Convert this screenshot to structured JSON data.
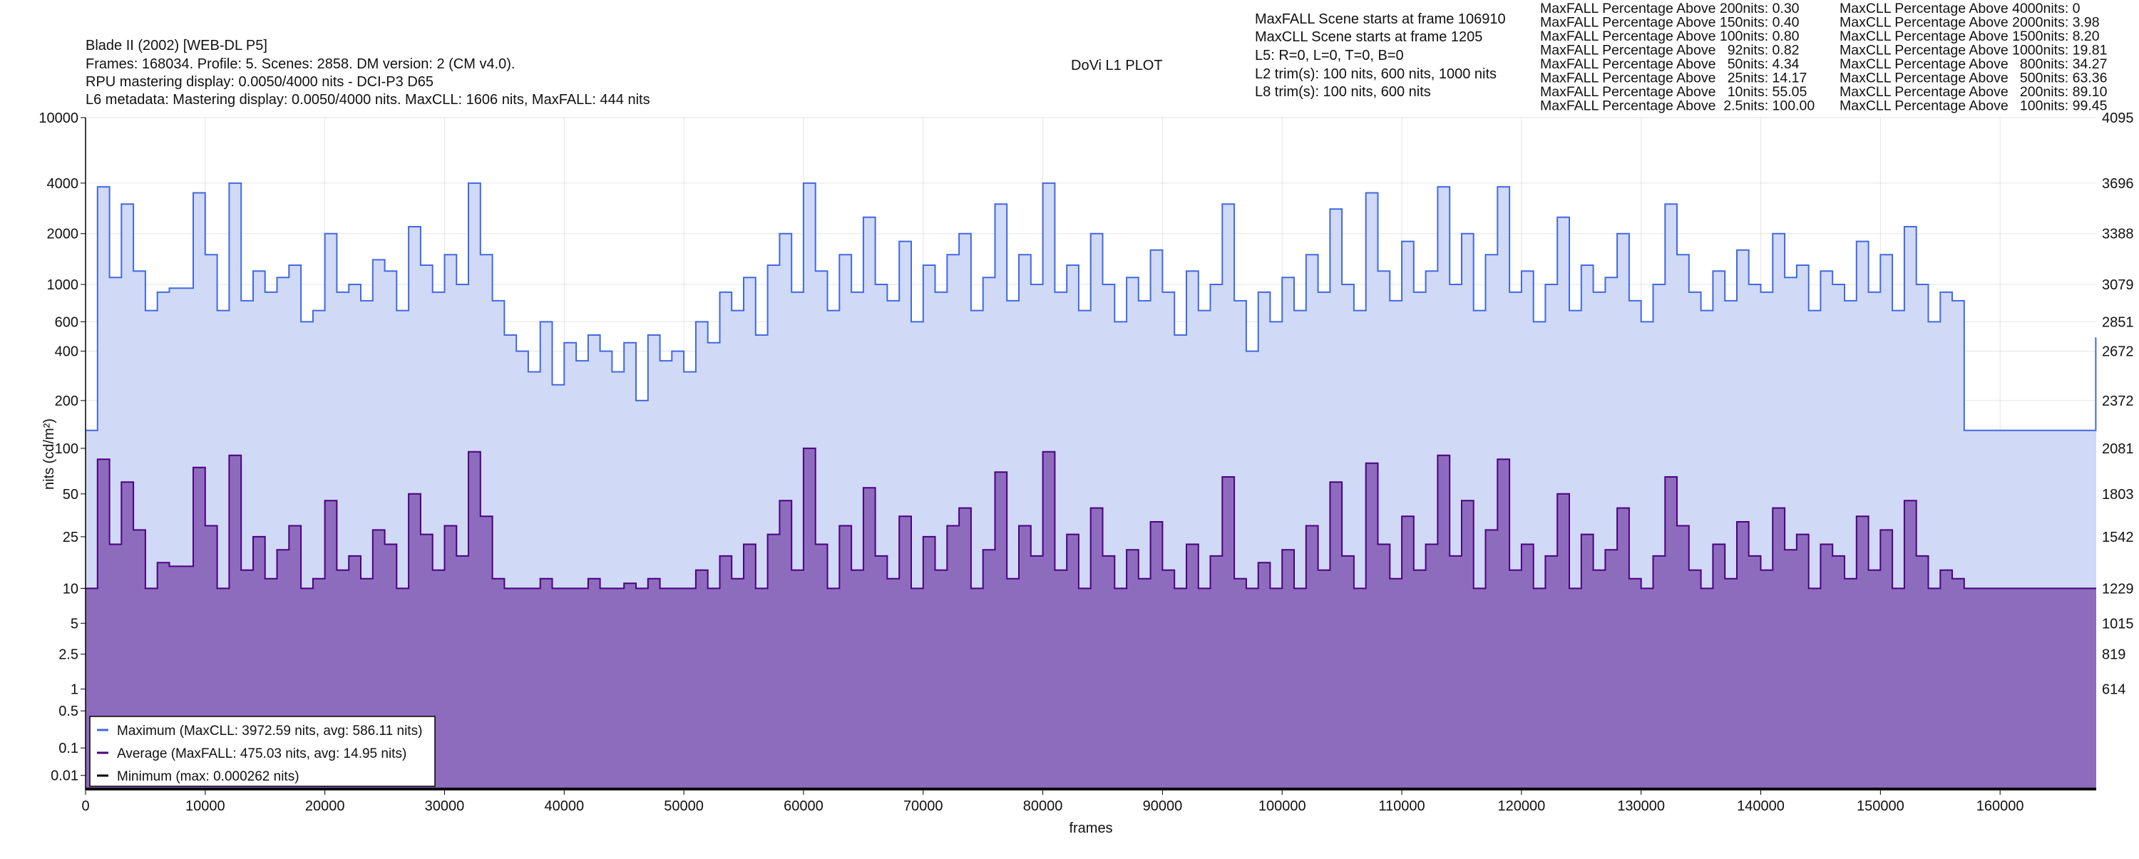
{
  "header": {
    "title": "Blade II (2002) [WEB-DL P5]",
    "line1": "Frames: 168034. Profile: 5. Scenes: 2858. DM version: 2 (CM v4.0).",
    "line2": "RPU mastering display: 0.0050/4000 nits - DCI-P3 D65",
    "line3": "L6 metadata: Mastering display: 0.0050/4000 nits. MaxCLL: 1606 nits, MaxFALL: 444 nits",
    "plot_title": "DoVi L1 PLOT"
  },
  "info": [
    "MaxFALL Scene starts at frame 106910",
    "MaxCLL Scene starts at frame 1205",
    "L5: R=0, L=0, T=0, B=0",
    "L2 trim(s): 100 nits, 600 nits, 1000 nits",
    "L8 trim(s): 100 nits, 600 nits"
  ],
  "maxfall_stats": [
    "MaxFALL Percentage Above 200nits: 0.30",
    "MaxFALL Percentage Above 150nits: 0.40",
    "MaxFALL Percentage Above 100nits: 0.80",
    "MaxFALL Percentage Above   92nits: 0.82",
    "MaxFALL Percentage Above   50nits: 4.34",
    "MaxFALL Percentage Above   25nits: 14.17",
    "MaxFALL Percentage Above   10nits: 55.05",
    "MaxFALL Percentage Above  2.5nits: 100.00"
  ],
  "maxcll_stats": [
    "MaxCLL Percentage Above 4000nits: 0",
    "MaxCLL Percentage Above 2000nits: 3.98",
    "MaxCLL Percentage Above 1500nits: 8.20",
    "MaxCLL Percentage Above 1000nits: 19.81",
    "MaxCLL Percentage Above   800nits: 34.27",
    "MaxCLL Percentage Above   500nits: 63.36",
    "MaxCLL Percentage Above   200nits: 89.10",
    "MaxCLL Percentage Above   100nits: 99.45"
  ],
  "chart_data": {
    "type": "line",
    "title": "DoVi L1 PLOT",
    "xlabel": "frames",
    "ylabel": "nits (cd/m²)",
    "xlim": [
      0,
      168034
    ],
    "x_step": 1000,
    "y_scale": "pq",
    "ylim": [
      0,
      10000
    ],
    "x_ticks": [
      0,
      10000,
      20000,
      30000,
      40000,
      50000,
      60000,
      70000,
      80000,
      90000,
      100000,
      110000,
      120000,
      130000,
      140000,
      150000,
      160000
    ],
    "x_tick_labels": [
      "0",
      "10000",
      "20000",
      "30000",
      "40000",
      "50000",
      "60000",
      "70000",
      "80000",
      "90000",
      "100000",
      "110000",
      "120000",
      "130000",
      "140000",
      "150000",
      "160000"
    ],
    "y_ticks": [
      10000,
      4000,
      2000,
      1000,
      600,
      400,
      200,
      100,
      50,
      25,
      10,
      5,
      2.5,
      1,
      0.5,
      0.1,
      0.01
    ],
    "y_tick_labels": [
      "10000",
      "4000",
      "2000",
      "1000",
      "600",
      "400",
      "200",
      "100",
      "50",
      "25",
      "10",
      "5",
      "2.5",
      "1",
      "0.5",
      "0.1",
      "0.01"
    ],
    "y2_tick_labels": [
      "4095",
      "3696",
      "3388",
      "3079",
      "2851",
      "2672",
      "2372",
      "2081",
      "1803",
      "1542",
      "1229",
      "1015",
      "819",
      "614"
    ],
    "grid": true,
    "legend_position": "bottom-left",
    "series": [
      {
        "name": "Maximum",
        "legend": "Maximum (MaxCLL: 3972.59 nits, avg: 586.11 nits)",
        "color": "#4169e1",
        "fill": "#d0d9f6",
        "values": [
          130,
          3800,
          1100,
          3000,
          1200,
          700,
          900,
          950,
          950,
          3500,
          1500,
          700,
          4000,
          800,
          1200,
          900,
          1100,
          1300,
          600,
          700,
          2000,
          900,
          1000,
          800,
          1400,
          1200,
          700,
          2200,
          1300,
          900,
          1500,
          1000,
          4000,
          1500,
          800,
          500,
          400,
          300,
          600,
          250,
          450,
          350,
          500,
          400,
          300,
          450,
          200,
          500,
          350,
          400,
          300,
          600,
          450,
          900,
          700,
          1100,
          500,
          1300,
          2000,
          900,
          4000,
          1200,
          700,
          1500,
          900,
          2500,
          1000,
          800,
          1800,
          600,
          1300,
          900,
          1500,
          2000,
          700,
          1100,
          3000,
          800,
          1500,
          1000,
          4000,
          900,
          1300,
          700,
          2000,
          1000,
          600,
          1100,
          800,
          1600,
          900,
          500,
          1200,
          700,
          1000,
          3000,
          800,
          400,
          900,
          600,
          1100,
          700,
          1500,
          900,
          2800,
          1000,
          700,
          3500,
          1200,
          800,
          1800,
          900,
          1200,
          3800,
          1000,
          2000,
          700,
          1500,
          3800,
          900,
          1200,
          600,
          1000,
          2500,
          700,
          1300,
          900,
          1100,
          2000,
          800,
          600,
          1000,
          3000,
          1500,
          900,
          700,
          1200,
          800,
          1600,
          1000,
          900,
          2000,
          1100,
          1300,
          700,
          1200,
          1000,
          800,
          1800,
          900,
          1500,
          700,
          2200,
          1000,
          600,
          900,
          800,
          130,
          130,
          130,
          130,
          130,
          130,
          130,
          130,
          130,
          130,
          130,
          480
        ]
      },
      {
        "name": "Average",
        "legend": "Average (MaxFALL: 475.03 nits, avg: 14.95 nits)",
        "color": "#4b0082",
        "fill": "#8e6cbd",
        "values": [
          10,
          85,
          22,
          60,
          28,
          10,
          16,
          15,
          15,
          75,
          30,
          10,
          90,
          14,
          25,
          12,
          20,
          30,
          10,
          12,
          45,
          14,
          18,
          12,
          28,
          22,
          10,
          50,
          26,
          14,
          30,
          18,
          95,
          35,
          12,
          10,
          10,
          10,
          12,
          10,
          10,
          10,
          12,
          10,
          10,
          11,
          10,
          12,
          10,
          10,
          10,
          14,
          10,
          18,
          12,
          22,
          10,
          26,
          45,
          14,
          100,
          22,
          10,
          30,
          14,
          55,
          18,
          12,
          35,
          10,
          25,
          14,
          30,
          40,
          10,
          20,
          70,
          12,
          30,
          18,
          95,
          14,
          26,
          10,
          40,
          18,
          10,
          20,
          12,
          32,
          14,
          10,
          22,
          10,
          18,
          65,
          12,
          10,
          16,
          10,
          20,
          10,
          30,
          14,
          60,
          18,
          10,
          80,
          22,
          12,
          35,
          14,
          22,
          90,
          18,
          45,
          10,
          28,
          85,
          14,
          22,
          10,
          18,
          50,
          10,
          26,
          14,
          20,
          40,
          12,
          10,
          18,
          65,
          30,
          14,
          10,
          22,
          12,
          32,
          18,
          14,
          40,
          20,
          26,
          10,
          22,
          18,
          12,
          35,
          14,
          28,
          10,
          45,
          18,
          10,
          14,
          12,
          10,
          10,
          10,
          10,
          10,
          10,
          10,
          10,
          10,
          10,
          10,
          10
        ]
      },
      {
        "name": "Minimum",
        "legend": "Minimum (max: 0.000262 nits)",
        "color": "#000000",
        "values": [
          0.0001
        ]
      }
    ]
  }
}
